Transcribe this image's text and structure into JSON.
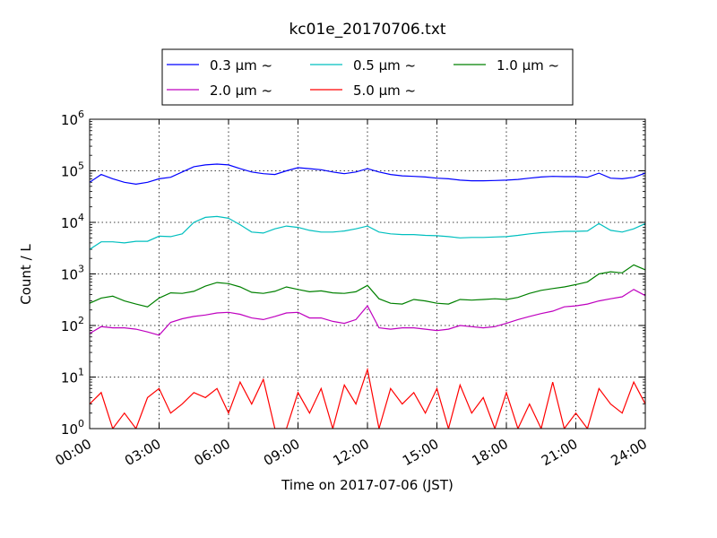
{
  "chart_data": {
    "type": "line",
    "title": "kc01e_20170706.txt",
    "xlabel": "Time on 2017-07-06 (JST)",
    "ylabel": "Count / L",
    "yscale": "log",
    "grid": true,
    "legend_position": "top-center",
    "xlim": [
      "2017-07-06 00:00",
      "2017-07-07 00:00"
    ],
    "ylim": [
      1,
      1000000
    ],
    "x_tick_labels": [
      "00:00",
      "03:00",
      "06:00",
      "09:00",
      "12:00",
      "15:00",
      "18:00",
      "21:00",
      "24:00"
    ],
    "y_tick_labels": [
      {
        "base": "10",
        "exp": "0"
      },
      {
        "base": "10",
        "exp": "1"
      },
      {
        "base": "10",
        "exp": "2"
      },
      {
        "base": "10",
        "exp": "3"
      },
      {
        "base": "10",
        "exp": "4"
      },
      {
        "base": "10",
        "exp": "5"
      },
      {
        "base": "10",
        "exp": "6"
      }
    ],
    "series": [
      {
        "name": "0.3 µm ~",
        "color": "#0000ff",
        "x": [
          "00:00",
          "00:30",
          "01:00",
          "01:30",
          "02:00",
          "02:30",
          "03:00",
          "03:30",
          "04:00",
          "04:30",
          "05:00",
          "05:30",
          "06:00",
          "06:30",
          "07:00",
          "07:30",
          "08:00",
          "08:30",
          "09:00",
          "09:30",
          "10:00",
          "10:30",
          "11:00",
          "11:30",
          "12:00",
          "12:30",
          "13:00",
          "13:30",
          "14:00",
          "14:30",
          "15:00",
          "15:30",
          "16:00",
          "16:30",
          "17:00",
          "17:30",
          "18:00",
          "18:30",
          "19:00",
          "19:30",
          "20:00",
          "20:30",
          "21:00",
          "21:30",
          "22:00",
          "22:30",
          "23:00",
          "23:30",
          "24:00"
        ],
        "y": [
          60000,
          85000,
          70000,
          60000,
          55000,
          60000,
          70000,
          75000,
          95000,
          120000,
          130000,
          135000,
          130000,
          110000,
          95000,
          88000,
          85000,
          100000,
          115000,
          110000,
          105000,
          95000,
          88000,
          95000,
          110000,
          95000,
          85000,
          80000,
          78000,
          76000,
          72000,
          70000,
          66000,
          64000,
          64000,
          65000,
          66000,
          68000,
          72000,
          76000,
          78000,
          77000,
          77000,
          75000,
          90000,
          72000,
          70000,
          75000,
          90000
        ]
      },
      {
        "name": "0.5 µm ~",
        "color": "#00bfbf",
        "x": [
          "00:00",
          "00:30",
          "01:00",
          "01:30",
          "02:00",
          "02:30",
          "03:00",
          "03:30",
          "04:00",
          "04:30",
          "05:00",
          "05:30",
          "06:00",
          "06:30",
          "07:00",
          "07:30",
          "08:00",
          "08:30",
          "09:00",
          "09:30",
          "10:00",
          "10:30",
          "11:00",
          "11:30",
          "12:00",
          "12:30",
          "13:00",
          "13:30",
          "14:00",
          "14:30",
          "15:00",
          "15:30",
          "16:00",
          "16:30",
          "17:00",
          "17:30",
          "18:00",
          "18:30",
          "19:00",
          "19:30",
          "20:00",
          "20:30",
          "21:00",
          "21:30",
          "22:00",
          "22:30",
          "23:00",
          "23:30",
          "24:00"
        ],
        "y": [
          3000,
          4200,
          4200,
          4000,
          4300,
          4300,
          5400,
          5300,
          6000,
          10000,
          12500,
          13000,
          12000,
          9000,
          6500,
          6200,
          7500,
          8500,
          8000,
          7000,
          6500,
          6500,
          6800,
          7500,
          8500,
          6500,
          6000,
          5800,
          5800,
          5600,
          5500,
          5300,
          5000,
          5100,
          5100,
          5200,
          5300,
          5600,
          6000,
          6300,
          6500,
          6700,
          6700,
          6800,
          9500,
          7000,
          6500,
          7500,
          9500
        ]
      },
      {
        "name": "1.0 µm ~",
        "color": "#008000",
        "x": [
          "00:00",
          "00:30",
          "01:00",
          "01:30",
          "02:00",
          "02:30",
          "03:00",
          "03:30",
          "04:00",
          "04:30",
          "05:00",
          "05:30",
          "06:00",
          "06:30",
          "07:00",
          "07:30",
          "08:00",
          "08:30",
          "09:00",
          "09:30",
          "10:00",
          "10:30",
          "11:00",
          "11:30",
          "12:00",
          "12:30",
          "13:00",
          "13:30",
          "14:00",
          "14:30",
          "15:00",
          "15:30",
          "16:00",
          "16:30",
          "17:00",
          "17:30",
          "18:00",
          "18:30",
          "19:00",
          "19:30",
          "20:00",
          "20:30",
          "21:00",
          "21:30",
          "22:00",
          "22:30",
          "23:00",
          "23:30",
          "24:00"
        ],
        "y": [
          270,
          340,
          370,
          300,
          260,
          230,
          340,
          430,
          420,
          460,
          580,
          680,
          650,
          560,
          440,
          420,
          460,
          560,
          500,
          450,
          470,
          430,
          420,
          450,
          600,
          330,
          270,
          260,
          320,
          300,
          270,
          260,
          320,
          310,
          320,
          330,
          320,
          350,
          420,
          480,
          520,
          560,
          620,
          700,
          1000,
          1100,
          1050,
          1500,
          1200
        ]
      },
      {
        "name": "2.0 µm ~",
        "color": "#bf00bf",
        "x": [
          "00:00",
          "00:30",
          "01:00",
          "01:30",
          "02:00",
          "02:30",
          "03:00",
          "03:30",
          "04:00",
          "04:30",
          "05:00",
          "05:30",
          "06:00",
          "06:30",
          "07:00",
          "07:30",
          "08:00",
          "08:30",
          "09:00",
          "09:30",
          "10:00",
          "10:30",
          "11:00",
          "11:30",
          "12:00",
          "12:30",
          "13:00",
          "13:30",
          "14:00",
          "14:30",
          "15:00",
          "15:30",
          "16:00",
          "16:30",
          "17:00",
          "17:30",
          "18:00",
          "18:30",
          "19:00",
          "19:30",
          "20:00",
          "20:30",
          "21:00",
          "21:30",
          "22:00",
          "22:30",
          "23:00",
          "23:30",
          "24:00"
        ],
        "y": [
          70,
          95,
          90,
          90,
          85,
          75,
          65,
          115,
          135,
          150,
          160,
          175,
          180,
          165,
          140,
          130,
          150,
          175,
          180,
          140,
          140,
          120,
          110,
          130,
          240,
          90,
          85,
          90,
          90,
          85,
          80,
          85,
          100,
          95,
          90,
          95,
          110,
          130,
          150,
          170,
          190,
          230,
          240,
          260,
          300,
          330,
          360,
          500,
          380
        ]
      },
      {
        "name": "5.0 µm ~",
        "color": "#ff0000",
        "x": [
          "00:00",
          "00:30",
          "01:00",
          "01:30",
          "02:00",
          "02:30",
          "03:00",
          "03:30",
          "04:00",
          "04:30",
          "05:00",
          "05:30",
          "06:00",
          "06:30",
          "07:00",
          "07:30",
          "08:00",
          "08:30",
          "09:00",
          "09:30",
          "10:00",
          "10:30",
          "11:00",
          "11:30",
          "12:00",
          "12:30",
          "13:00",
          "13:30",
          "14:00",
          "14:30",
          "15:00",
          "15:30",
          "16:00",
          "16:30",
          "17:00",
          "17:30",
          "18:00",
          "18:30",
          "19:00",
          "19:30",
          "20:00",
          "20:30",
          "21:00",
          "21:30",
          "22:00",
          "22:30",
          "23:00",
          "23:30",
          "24:00"
        ],
        "y": [
          3,
          5,
          1,
          2,
          1,
          4,
          6,
          2,
          3,
          5,
          4,
          6,
          2,
          8,
          3,
          9,
          1,
          1,
          5,
          2,
          6,
          1,
          7,
          3,
          14,
          1,
          6,
          3,
          5,
          2,
          6,
          1,
          7,
          2,
          4,
          1,
          5,
          1,
          3,
          1,
          8,
          1,
          2,
          1,
          6,
          3,
          2,
          8,
          3
        ]
      }
    ]
  }
}
